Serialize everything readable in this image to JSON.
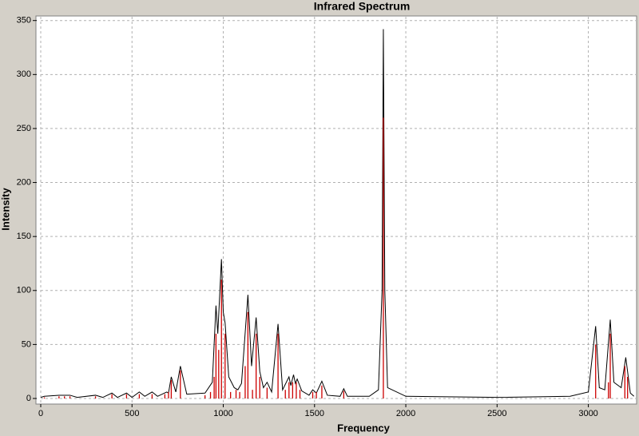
{
  "chart_data": {
    "type": "line",
    "title": "Infrared Spectrum",
    "x_label": "Frequency",
    "y_label": "Intensity",
    "xlim": [
      0,
      3260
    ],
    "ylim": [
      0,
      352
    ],
    "xticks": [
      0,
      500,
      1000,
      1500,
      2000,
      2500,
      3000
    ],
    "yticks": [
      0,
      50,
      100,
      150,
      200,
      250,
      300,
      350
    ],
    "grid": true,
    "series": [
      {
        "kind": "line",
        "color": "#000000",
        "x": [
          0,
          20,
          100,
          160,
          200,
          300,
          340,
          390,
          420,
          470,
          500,
          540,
          570,
          610,
          640,
          690,
          700,
          715,
          740,
          765,
          800,
          900,
          940,
          960,
          970,
          990,
          1000,
          1010,
          1030,
          1060,
          1080,
          1100,
          1135,
          1155,
          1180,
          1200,
          1220,
          1240,
          1265,
          1300,
          1325,
          1360,
          1370,
          1385,
          1395,
          1405,
          1430,
          1470,
          1490,
          1510,
          1540,
          1570,
          1640,
          1660,
          1680,
          1800,
          1850,
          1870,
          1877,
          1885,
          1900,
          2000,
          2500,
          2900,
          3000,
          3040,
          3060,
          3090,
          3120,
          3140,
          3180,
          3205,
          3230,
          3250
        ],
        "values": [
          1,
          2,
          3,
          3,
          1,
          3,
          1,
          5,
          1,
          5,
          1,
          6,
          2,
          6,
          2,
          6,
          5,
          20,
          6,
          30,
          4,
          5,
          15,
          86,
          60,
          129,
          80,
          70,
          20,
          10,
          8,
          14,
          96,
          30,
          75,
          25,
          10,
          15,
          6,
          69,
          8,
          20,
          12,
          22,
          14,
          18,
          7,
          3,
          8,
          5,
          16,
          3,
          2,
          9,
          2,
          2,
          8,
          100,
          342,
          100,
          10,
          2,
          1,
          2,
          6,
          67,
          10,
          8,
          73,
          15,
          10,
          38,
          5,
          2
        ]
      },
      {
        "kind": "stick",
        "color": "#cc0000",
        "x": [
          20,
          100,
          130,
          160,
          300,
          390,
          470,
          540,
          610,
          680,
          700,
          715,
          765,
          900,
          930,
          950,
          960,
          975,
          990,
          1010,
          1040,
          1070,
          1090,
          1120,
          1135,
          1160,
          1180,
          1200,
          1240,
          1300,
          1340,
          1360,
          1380,
          1400,
          1420,
          1490,
          1510,
          1540,
          1660,
          1877,
          3040,
          3110,
          3120,
          3200,
          3215
        ],
        "values": [
          1,
          2,
          2,
          2,
          2,
          4,
          4,
          4,
          4,
          4,
          6,
          17,
          26,
          3,
          6,
          20,
          60,
          45,
          110,
          60,
          6,
          8,
          6,
          30,
          80,
          8,
          60,
          20,
          10,
          60,
          8,
          15,
          15,
          15,
          8,
          6,
          6,
          12,
          7,
          260,
          50,
          15,
          60,
          30,
          20
        ]
      }
    ]
  }
}
